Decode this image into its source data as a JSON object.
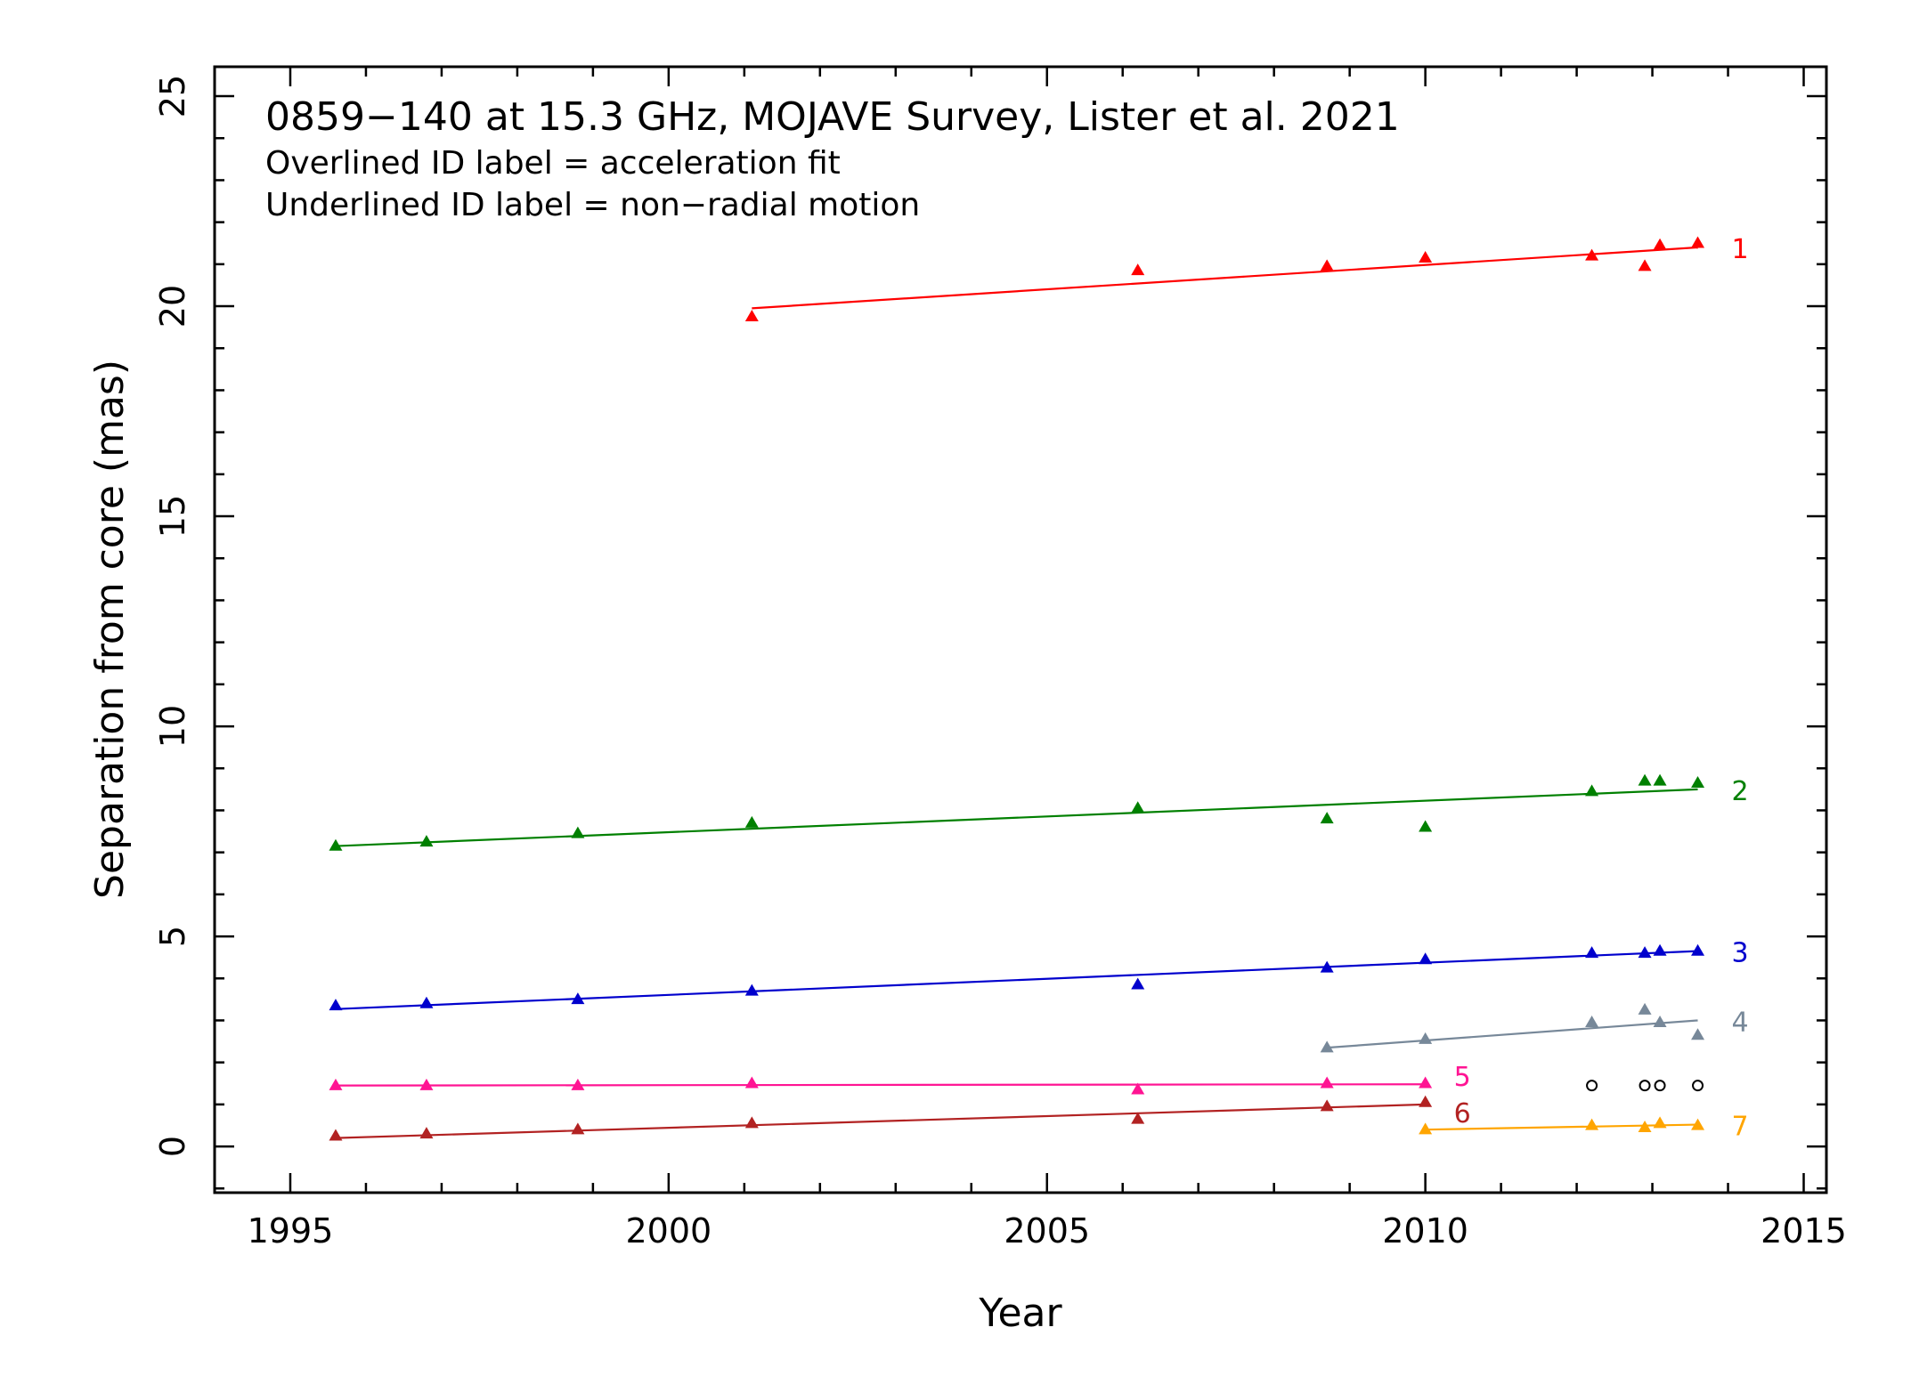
{
  "chart_data": {
    "type": "scatter",
    "title": "0859−140 at 15.3 GHz, MOJAVE Survey, Lister et al. 2021",
    "subtitle_lines": [
      "Overlined ID label = acceleration fit",
      "Underlined ID label = non−radial motion"
    ],
    "xlabel": "Year",
    "ylabel": "Separation from core (mas)",
    "xlim": [
      1994.0,
      2015.3
    ],
    "ylim": [
      -1.1,
      25.7
    ],
    "x_ticks": [
      1995,
      2000,
      2005,
      2010,
      2015
    ],
    "y_ticks": [
      0,
      5,
      10,
      15,
      20,
      25
    ],
    "grid": false,
    "series": [
      {
        "name": "1",
        "color": "#ff0000",
        "marker": "triangle",
        "x": [
          2001.1,
          2006.2,
          2008.7,
          2010.0,
          2012.2,
          2012.9,
          2013.1,
          2013.6
        ],
        "y": [
          19.75,
          20.85,
          20.95,
          21.15,
          21.2,
          20.95,
          21.45,
          21.5
        ],
        "fit": {
          "x": [
            2001.1,
            2013.6
          ],
          "y": [
            19.95,
            21.4
          ]
        }
      },
      {
        "name": "2",
        "color": "#008000",
        "marker": "triangle",
        "x": [
          1995.6,
          1996.8,
          1998.8,
          2001.1,
          2006.2,
          2008.7,
          2010.0,
          2012.2,
          2012.9,
          2013.1,
          2013.6
        ],
        "y": [
          7.15,
          7.25,
          7.45,
          7.7,
          8.05,
          7.8,
          7.6,
          8.45,
          8.7,
          8.7,
          8.65
        ],
        "fit": {
          "x": [
            1995.6,
            2013.6
          ],
          "y": [
            7.15,
            8.5
          ]
        }
      },
      {
        "name": "3",
        "color": "#0000cd",
        "marker": "triangle",
        "x": [
          1995.6,
          1996.8,
          1998.8,
          2001.1,
          2006.2,
          2008.7,
          2010.0,
          2012.2,
          2012.9,
          2013.1,
          2013.6
        ],
        "y": [
          3.35,
          3.4,
          3.5,
          3.7,
          3.85,
          4.25,
          4.45,
          4.6,
          4.6,
          4.65,
          4.65
        ],
        "fit": {
          "x": [
            1995.6,
            2013.6
          ],
          "y": [
            3.27,
            4.65
          ]
        }
      },
      {
        "name": "4",
        "color": "#778899",
        "marker": "triangle",
        "x": [
          2008.7,
          2010.0,
          2012.2,
          2012.9,
          2013.1,
          2013.6
        ],
        "y": [
          2.35,
          2.55,
          2.95,
          3.25,
          2.95,
          2.65
        ],
        "fit": {
          "x": [
            2008.7,
            2013.6
          ],
          "y": [
            2.35,
            3.0
          ]
        }
      },
      {
        "name": "5",
        "color": "#ff1493",
        "marker": "triangle",
        "x": [
          1995.6,
          1996.8,
          1998.8,
          2001.1,
          2006.2,
          2008.7,
          2010.0
        ],
        "y": [
          1.45,
          1.45,
          1.45,
          1.5,
          1.35,
          1.5,
          1.5
        ],
        "fit": {
          "x": [
            1995.6,
            2010.0
          ],
          "y": [
            1.45,
            1.48
          ]
        }
      },
      {
        "name": "6",
        "color": "#b22222",
        "marker": "triangle",
        "x": [
          1995.6,
          1996.8,
          1998.8,
          2001.1,
          2006.2,
          2008.7,
          2010.0
        ],
        "y": [
          0.25,
          0.3,
          0.4,
          0.55,
          0.65,
          0.95,
          1.05
        ],
        "fit": {
          "x": [
            1995.6,
            2010.0
          ],
          "y": [
            0.2,
            1.0
          ]
        }
      },
      {
        "name": "7",
        "color": "#ffa500",
        "marker": "triangle",
        "x": [
          2010.0,
          2012.2,
          2012.9,
          2013.1,
          2013.6
        ],
        "y": [
          0.4,
          0.5,
          0.45,
          0.55,
          0.5
        ],
        "fit": {
          "x": [
            2010.0,
            2013.6
          ],
          "y": [
            0.4,
            0.52
          ]
        }
      },
      {
        "name": "",
        "color": "#000000",
        "marker": "circle",
        "x": [
          2012.2,
          2012.9,
          2013.1,
          2013.6
        ],
        "y": [
          1.45,
          1.45,
          1.45,
          1.45
        ]
      }
    ]
  }
}
